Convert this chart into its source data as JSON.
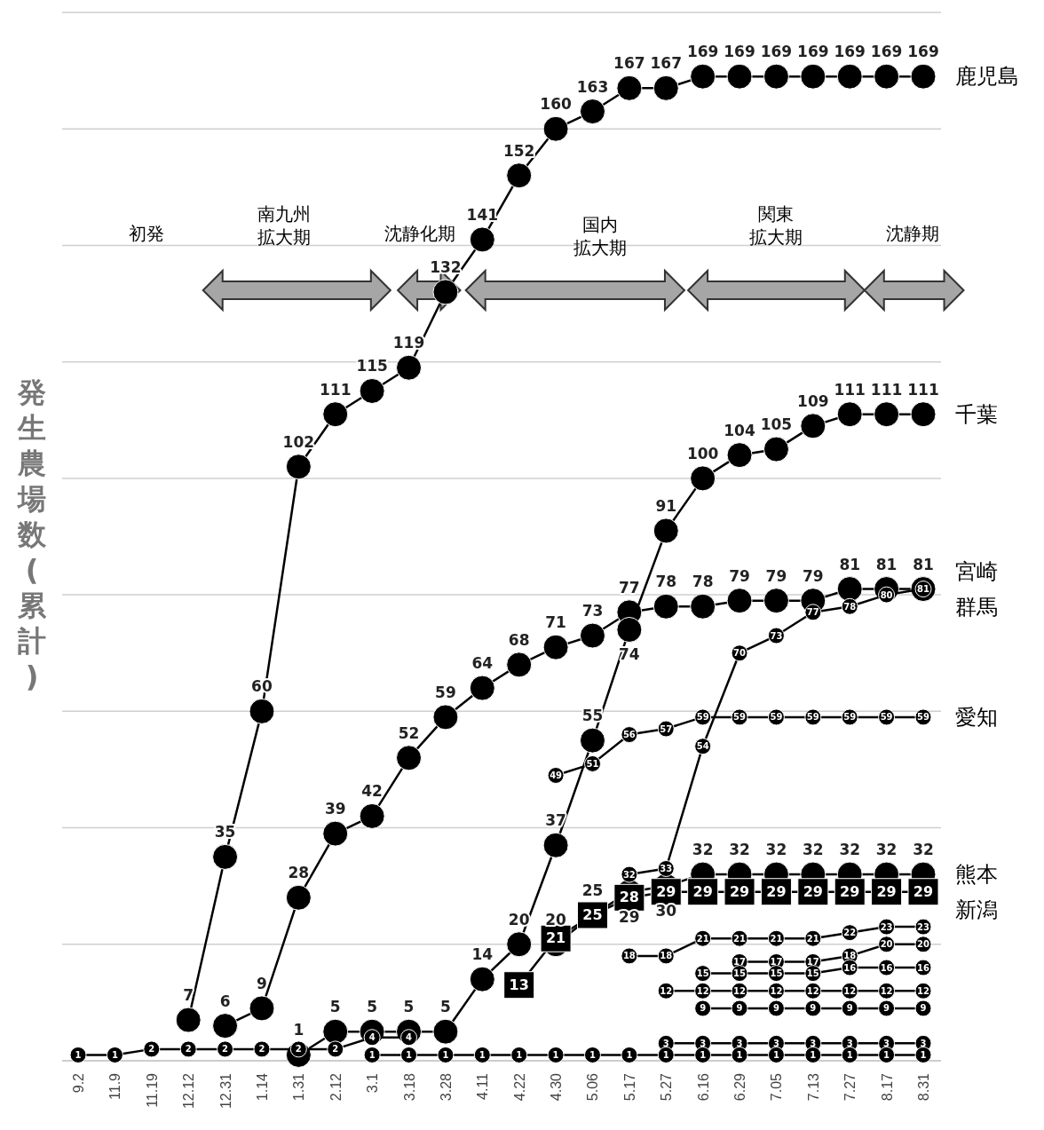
{
  "chart_data": {
    "type": "line",
    "ylabel": "発生農場数(累計)",
    "categories": [
      "9.2",
      "11.9",
      "11.19",
      "12.12",
      "12.31",
      "1.14",
      "1.31",
      "2.12",
      "3.1",
      "3.18",
      "3.28",
      "4.11",
      "4.22",
      "4.30",
      "5.06",
      "5.17",
      "5.27",
      "6.16",
      "6.29",
      "7.05",
      "7.13",
      "7.27",
      "8.17",
      "8.31"
    ],
    "ylim": [
      0,
      180
    ],
    "yticks": [
      {
        "value": 20,
        "label": null
      },
      {
        "value": 40,
        "label": null
      },
      {
        "value": 60,
        "label": null
      },
      {
        "value": 80,
        "label": null
      },
      {
        "value": 100,
        "label": null
      },
      {
        "value": 120,
        "label": null
      },
      {
        "value": 140,
        "label": null
      },
      {
        "value": 160,
        "label": null
      },
      {
        "value": 180,
        "label": null
      }
    ],
    "tick_labels": "x",
    "grid": "y",
    "legend": false,
    "data_labels": true,
    "marker": "circle",
    "line_style": "solid",
    "annotations": [
      "初発",
      "南九州拡大期",
      "沈静化期",
      "国内拡大期",
      "関東拡大期",
      "沈静期"
    ],
    "series": [
      {
        "name": "鹿児島",
        "color": "#000000",
        "values": [
          null,
          null,
          null,
          7,
          35,
          60,
          102,
          111,
          115,
          119,
          132,
          141,
          152,
          160,
          163,
          167,
          167,
          169,
          169,
          169,
          169,
          169,
          169,
          169
        ]
      },
      {
        "name": "宮崎",
        "color": "#000000",
        "values": [
          null,
          null,
          null,
          null,
          6,
          9,
          28,
          39,
          42,
          52,
          59,
          64,
          68,
          71,
          73,
          77,
          78,
          78,
          79,
          79,
          79,
          81,
          81,
          81
        ]
      },
      {
        "name": "千葉",
        "color": "#000000",
        "values": [
          null,
          null,
          null,
          null,
          null,
          null,
          1,
          5,
          5,
          5,
          5,
          14,
          20,
          37,
          55,
          74,
          91,
          100,
          104,
          105,
          109,
          111,
          111,
          111
        ]
      },
      {
        "name": "熊本",
        "color": "#000000",
        "values": [
          null,
          null,
          null,
          null,
          null,
          null,
          null,
          null,
          null,
          null,
          null,
          null,
          null,
          20,
          25,
          29,
          30,
          32,
          32,
          32,
          32,
          32,
          32,
          32
        ]
      },
      {
        "name": "群馬",
        "color": "#000000",
        "values": [
          null,
          null,
          null,
          null,
          null,
          null,
          null,
          null,
          null,
          null,
          null,
          null,
          null,
          null,
          null,
          32,
          33,
          54,
          70,
          73,
          77,
          78,
          80,
          81
        ]
      },
      {
        "name": "愛知",
        "color": "#000000",
        "values": [
          null,
          null,
          null,
          null,
          null,
          null,
          null,
          null,
          null,
          null,
          null,
          null,
          null,
          49,
          51,
          56,
          57,
          59,
          59,
          59,
          59,
          59,
          59,
          59
        ]
      },
      {
        "name": "新潟",
        "color": "#000000",
        "marker": "square",
        "values": [
          null,
          null,
          null,
          null,
          null,
          null,
          null,
          null,
          null,
          null,
          null,
          null,
          13,
          21,
          25,
          28,
          29,
          29,
          29,
          29,
          29,
          29,
          29,
          29
        ]
      },
      {
        "color": "#000000",
        "values": [
          1,
          1,
          2,
          2,
          2,
          2,
          2,
          2,
          4,
          4,
          null,
          null,
          null,
          null,
          null,
          null,
          null,
          null,
          null,
          null,
          null,
          null,
          null,
          null
        ]
      },
      {
        "color": "#000000",
        "values": [
          null,
          null,
          null,
          null,
          null,
          null,
          null,
          null,
          null,
          null,
          null,
          null,
          null,
          null,
          null,
          18,
          18,
          21,
          21,
          21,
          21,
          22,
          23,
          23
        ]
      },
      {
        "color": "#000000",
        "values": [
          null,
          null,
          null,
          null,
          null,
          null,
          null,
          null,
          null,
          null,
          null,
          null,
          null,
          null,
          null,
          null,
          null,
          null,
          17,
          17,
          17,
          18,
          20,
          20
        ]
      },
      {
        "color": "#000000",
        "values": [
          null,
          null,
          null,
          null,
          null,
          null,
          null,
          null,
          null,
          null,
          null,
          null,
          null,
          null,
          null,
          null,
          null,
          15,
          15,
          15,
          15,
          16,
          16,
          16
        ]
      },
      {
        "color": "#000000",
        "values": [
          null,
          null,
          null,
          null,
          null,
          null,
          null,
          null,
          null,
          null,
          null,
          null,
          null,
          null,
          null,
          null,
          12,
          12,
          12,
          12,
          12,
          12,
          12,
          12
        ]
      },
      {
        "color": "#000000",
        "values": [
          null,
          null,
          null,
          null,
          null,
          null,
          null,
          null,
          null,
          null,
          null,
          null,
          null,
          null,
          null,
          null,
          null,
          9,
          9,
          9,
          9,
          9,
          9,
          9
        ]
      },
      {
        "color": "#000000",
        "values": [
          null,
          null,
          null,
          null,
          null,
          null,
          null,
          null,
          null,
          null,
          null,
          null,
          null,
          null,
          null,
          null,
          3,
          3,
          3,
          3,
          3,
          3,
          3,
          3
        ]
      },
      {
        "color": "#000000",
        "values": [
          null,
          null,
          null,
          null,
          null,
          null,
          null,
          null,
          1,
          1,
          1,
          1,
          1,
          1,
          1,
          1,
          1,
          1,
          1,
          1,
          1,
          1,
          1,
          1
        ]
      }
    ]
  }
}
